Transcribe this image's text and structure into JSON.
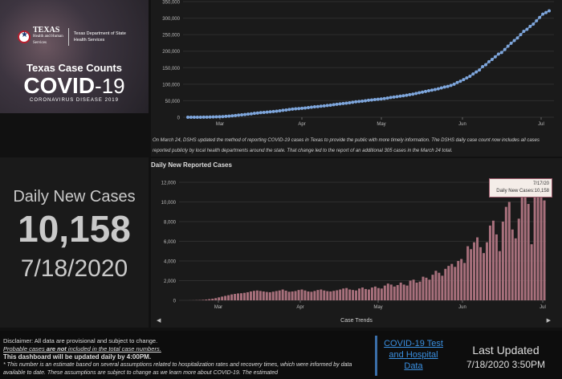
{
  "banner": {
    "org_line1": "TEXAS",
    "org_line2": "Health and Human",
    "org_line3": "Services",
    "dshs_line1": "Texas Department of State",
    "dshs_line2": "Health Services",
    "case_counts": "Texas Case Counts",
    "covid_main": "COVID",
    "covid_sub": "-19",
    "corona": "CORONAVIRUS DISEASE 2019"
  },
  "counter": {
    "label": "Daily New Cases",
    "value": "10,158",
    "date": "7/18/2020"
  },
  "note": "On March 24, DSHS updated the method of reporting COVID-19 cases in Texas to provide the public with more timely information. The DSHS daily case count now includes all cases reported publicly by local health departments around the state. That change led to the report of an additional 305 cases in the March 24 total.",
  "daily_title": "Daily New Reported Cases",
  "tooltip": {
    "date": "7/17/20",
    "text": "Daily New Cases:10,158"
  },
  "trend_label": "Case Trends",
  "disclaimer": {
    "line1": "Disclaimer: All data are provisional and subject to change.",
    "line2a": "Probable cases ",
    "line2b": "are not",
    "line2c": " included in the total case numbers.",
    "line3": "This dashboard will be updated daily by 4:00PM.",
    "line4": "* This number is an estimate based on several assumptions related to hospitalization rates and recovery times, which were informed by data available to date. These assumptions are subject to change as we learn more about COVID-19. The estimated"
  },
  "link": "COVID-19 Test and Hospital Data",
  "last_updated": {
    "label": "Last Updated",
    "value": "7/18/2020 3:50PM"
  },
  "colors": {
    "cumulative": "#7ea6dc",
    "daily": "#a8707c",
    "link": "#3a8fe0"
  },
  "icons": {
    "left_arrow": "◀",
    "right_arrow": "▶"
  },
  "chart_data": [
    {
      "type": "scatter",
      "title": "",
      "xlabel": "",
      "ylabel": "",
      "x_ticks": [
        "Mar",
        "Apr",
        "May",
        "Jun",
        "Jul"
      ],
      "y_ticks": [
        "0",
        "50,000",
        "100,000",
        "150,000",
        "200,000",
        "250,000",
        "300,000",
        "350,000"
      ],
      "ylim": [
        0,
        350000
      ],
      "series": [
        {
          "values": [
            0,
            20,
            50,
            90,
            150,
            250,
            400,
            600,
            800,
            1100,
            1400,
            1900,
            2600,
            3300,
            4200,
            5300,
            6300,
            7300,
            8200,
            9300,
            10300,
            11700,
            12900,
            13900,
            14600,
            15400,
            16400,
            17400,
            18300,
            19500,
            20900,
            22000,
            23300,
            24600,
            25500,
            26200,
            27100,
            28000,
            29200,
            30500,
            31500,
            32300,
            33300,
            34400,
            35400,
            36600,
            38000,
            39200,
            40400,
            41500,
            42400,
            43900,
            45200,
            46800,
            47800,
            48700,
            49900,
            51300,
            52300,
            53400,
            54500,
            55300,
            56600,
            57900,
            59800,
            61000,
            62300,
            63700,
            64900,
            66600,
            68300,
            70000,
            72000,
            74000,
            76000,
            78200,
            80300,
            82000,
            84000,
            86100,
            88800,
            91300,
            93200,
            96300,
            100000,
            105000,
            109000,
            114000,
            119000,
            124000,
            131000,
            137000,
            143000,
            153000,
            159000,
            168000,
            175000,
            183000,
            191000,
            196000,
            205000,
            215000,
            224000,
            232000,
            240000,
            250000,
            260000,
            266000,
            275000,
            282000,
            292000,
            302000,
            312000,
            317000,
            322000
          ]
        }
      ]
    },
    {
      "type": "bar",
      "title": "Daily New Reported Cases",
      "xlabel": "",
      "ylabel": "",
      "x_ticks": [
        "Mar",
        "Apr",
        "May",
        "Jun",
        "Jul"
      ],
      "y_ticks": [
        "0",
        "2,000",
        "4,000",
        "6,000",
        "8,000",
        "10,000",
        "12,000"
      ],
      "ylim": [
        0,
        12000
      ],
      "series": [
        {
          "values": [
            0,
            0,
            0,
            5,
            10,
            20,
            30,
            50,
            80,
            120,
            160,
            220,
            300,
            380,
            450,
            520,
            600,
            650,
            700,
            720,
            760,
            820,
            900,
            960,
            1000,
            950,
            900,
            850,
            820,
            880,
            940,
            1000,
            1100,
            980,
            870,
            900,
            940,
            1050,
            1100,
            1000,
            900,
            870,
            950,
            1050,
            1100,
            1000,
            930,
            900,
            960,
            1020,
            1100,
            1200,
            1250,
            1100,
            1050,
            1000,
            1200,
            1300,
            1150,
            1100,
            1300,
            1400,
            1250,
            1200,
            1500,
            1700,
            1600,
            1400,
            1550,
            1800,
            1600,
            1500,
            2000,
            2100,
            1800,
            1900,
            2400,
            2300,
            2100,
            2600,
            3000,
            2800,
            2500,
            3200,
            3500,
            3700,
            3400,
            4000,
            4200,
            3800,
            5500,
            5200,
            5900,
            6400,
            5400,
            4800,
            5900,
            7600,
            8100,
            6700,
            5000,
            8000,
            9500,
            10000,
            7200,
            6300,
            8300,
            10700,
            10500,
            9800,
            5700,
            10900,
            11500,
            11900,
            10158
          ]
        }
      ]
    }
  ]
}
